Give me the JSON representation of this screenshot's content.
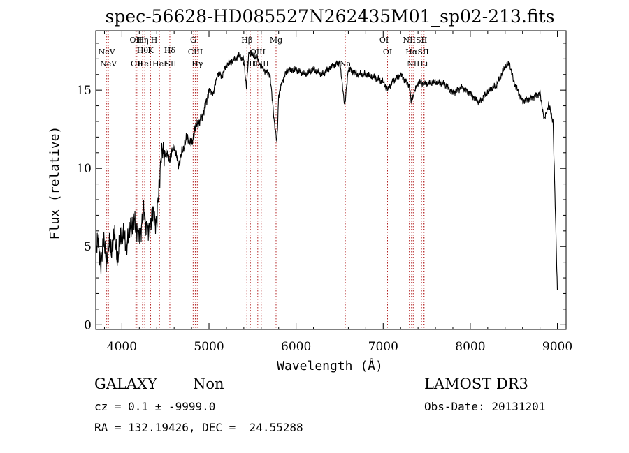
{
  "chart_data": {
    "type": "line",
    "title": "spec-56628-HD085527N262435M01_sp02-213.fits",
    "xlabel": "Wavelength (Å)",
    "ylabel": "Flux (relative)",
    "xlim": [
      3700,
      9100
    ],
    "ylim": [
      -0.3,
      18.8
    ],
    "x_ticks": [
      4000,
      5000,
      6000,
      7000,
      8000,
      9000
    ],
    "y_ticks": [
      0,
      5,
      10,
      15
    ],
    "line_color": "#000000",
    "marker_color": "#b22222",
    "series": [
      {
        "x": [
          3700,
          3730,
          3760,
          3790,
          3820,
          3850,
          3880,
          3910,
          3950,
          4000,
          4050,
          4100,
          4150,
          4200,
          4250,
          4300,
          4350,
          4400,
          4450,
          4500,
          4550,
          4600,
          4650,
          4700,
          4750,
          4800,
          4850,
          4900,
          4950,
          5000,
          5050,
          5100,
          5150,
          5200,
          5250,
          5300,
          5350,
          5400,
          5430,
          5460,
          5500,
          5550,
          5600,
          5650,
          5700,
          5750,
          5780,
          5800,
          5850,
          5900,
          6000,
          6100,
          6200,
          6300,
          6400,
          6500,
          6560,
          6600,
          6650,
          6700,
          6800,
          6900,
          7000,
          7050,
          7100,
          7200,
          7300,
          7320,
          7400,
          7500,
          7600,
          7700,
          7800,
          7900,
          8000,
          8100,
          8200,
          8300,
          8400,
          8450,
          8500,
          8600,
          8700,
          8800,
          8850,
          8900,
          8950,
          9000
        ],
        "y": [
          4.5,
          5.6,
          3.5,
          5.8,
          3.8,
          5.2,
          4.6,
          5.8,
          4.2,
          6.0,
          5.0,
          6.3,
          6.6,
          5.5,
          7.3,
          5.8,
          7.2,
          6.5,
          10.9,
          11.0,
          10.6,
          11.4,
          10.2,
          11.2,
          12.0,
          11.5,
          12.8,
          13.0,
          13.8,
          15.0,
          14.8,
          16.1,
          15.9,
          16.6,
          16.8,
          17.0,
          17.2,
          16.9,
          15.2,
          17.5,
          17.2,
          17.1,
          16.5,
          16.2,
          16.0,
          13.0,
          11.6,
          14.7,
          15.7,
          16.3,
          16.3,
          16.0,
          16.3,
          16.0,
          16.5,
          16.8,
          14.0,
          16.4,
          16.2,
          16.0,
          16.0,
          15.8,
          15.5,
          15.0,
          15.5,
          16.0,
          15.3,
          14.3,
          15.5,
          15.4,
          15.5,
          15.4,
          14.8,
          15.2,
          14.8,
          14.2,
          14.9,
          15.3,
          16.5,
          16.7,
          15.5,
          14.3,
          14.5,
          14.8,
          13.1,
          14.1,
          13.0,
          2.2
        ]
      }
    ],
    "line_markers": [
      {
        "x": 3826,
        "label": "NeV",
        "row": 2
      },
      {
        "x": 3846,
        "label": "NeV",
        "row": 3
      },
      {
        "x": 4160,
        "label": "OII",
        "row": 0
      },
      {
        "x": 4172,
        "label": "OII",
        "row": 3
      },
      {
        "x": 4237,
        "label": "Hθ",
        "row": 1
      },
      {
        "x": 4242,
        "label": "Hη",
        "row": 0
      },
      {
        "x": 4262,
        "label": "HeI",
        "row": 3
      },
      {
        "x": 4330,
        "label": "K",
        "row": 1
      },
      {
        "x": 4370,
        "label": "H",
        "row": 0
      },
      {
        "x": 4432,
        "label": "HeI",
        "row": 3
      },
      {
        "x": 4550,
        "label": "Hδ",
        "row": 1
      },
      {
        "x": 4562,
        "label": "SII",
        "row": 3
      },
      {
        "x": 4818,
        "label": "G",
        "row": 0
      },
      {
        "x": 4843,
        "label": "CIII",
        "row": 2
      },
      {
        "x": 4866,
        "label": "Hγ",
        "row": 3
      },
      {
        "x": 5435,
        "label": "Hβ",
        "row": 0
      },
      {
        "x": 5475,
        "label": "OIII",
        "row": 3
      },
      {
        "x": 5560,
        "label": "OIII",
        "row": 2
      },
      {
        "x": 5600,
        "label": "OIII",
        "row": 3
      },
      {
        "x": 5770,
        "label": "Mg",
        "row": 0
      },
      {
        "x": 6565,
        "label": "Na",
        "row": 3
      },
      {
        "x": 7010,
        "label": "OI",
        "row": 0
      },
      {
        "x": 7050,
        "label": "OI",
        "row": 2
      },
      {
        "x": 7300,
        "label": "NII",
        "row": 0
      },
      {
        "x": 7325,
        "label": "Hα",
        "row": 2
      },
      {
        "x": 7345,
        "label": "NII",
        "row": 3
      },
      {
        "x": 7440,
        "label": "SII",
        "row": 0
      },
      {
        "x": 7460,
        "label": "SII",
        "row": 2
      },
      {
        "x": 7470,
        "label": "Li",
        "row": 3
      }
    ]
  },
  "info": {
    "class_label": "GALAXY",
    "subclass_label": "Non",
    "survey_label": "LAMOST DR3",
    "cz_line": "cz = 0.1 ± -9999.0",
    "obs_date_line": "Obs-Date: 20131201",
    "radec_line": "RA = 132.19426, DEC =  24.55288"
  }
}
